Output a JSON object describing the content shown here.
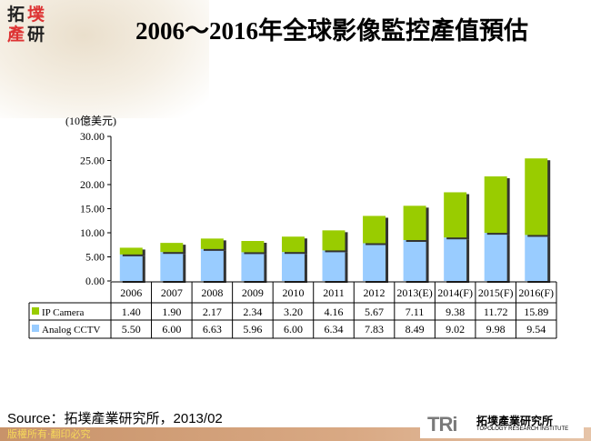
{
  "header": {
    "title": "2006～2016年全球影像監控產值預估",
    "logo_text": "拓墣產研"
  },
  "chart_data": {
    "type": "bar",
    "stacked": true,
    "title": "2006～2016年全球影像監控產值預估",
    "ylabel": "(10億美元)",
    "ylim": [
      0,
      30
    ],
    "yticks": [
      "0.00",
      "5.00",
      "10.00",
      "15.00",
      "20.00",
      "25.00",
      "30.00"
    ],
    "grid": false,
    "categories": [
      "2006",
      "2007",
      "2008",
      "2009",
      "2010",
      "2011",
      "2012",
      "2013(E)",
      "2014(F)",
      "2015(F)",
      "2016(F)"
    ],
    "series": [
      {
        "name": "Analog CCTV",
        "color": "#99ccff",
        "values": [
          5.5,
          6.0,
          6.63,
          5.96,
          6.0,
          6.34,
          7.83,
          8.49,
          9.02,
          9.98,
          9.54
        ],
        "labels": [
          "5.50",
          "6.00",
          "6.63",
          "5.96",
          "6.00",
          "6.34",
          "7.83",
          "8.49",
          "9.02",
          "9.98",
          "9.54"
        ]
      },
      {
        "name": "IP Camera",
        "color": "#99cc00",
        "values": [
          1.4,
          1.9,
          2.17,
          2.34,
          3.2,
          4.16,
          5.67,
          7.11,
          9.38,
          11.72,
          15.89
        ],
        "labels": [
          "1.40",
          "1.90",
          "2.17",
          "2.34",
          "3.20",
          "4.16",
          "5.67",
          "7.11",
          "9.38",
          "11.72",
          "15.89"
        ]
      }
    ],
    "legend": "data-table"
  },
  "source": "Source：拓墣產業研究所，2013/02",
  "footer": {
    "copyright": "版權所有‧翻印必究",
    "brand": "TRi",
    "brand_zh": "拓墣產業研究所",
    "brand_en": "TOPOLOGY RESEARCH INSTITUTE"
  }
}
